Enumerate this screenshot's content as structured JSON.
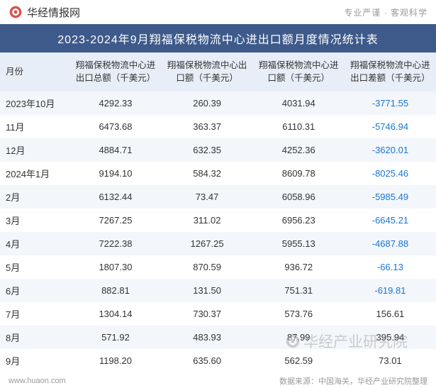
{
  "header": {
    "site_name": "华经情报网",
    "tagline": "专业严谨 · 客观科学"
  },
  "title": "2023-2024年9月翔福保税物流中心进出口额月度情况统计表",
  "columns": [
    "月份",
    "翔福保税物流中心进出口总额（千美元）",
    "翔福保税物流中心出口额（千美元）",
    "翔福保税物流中心进口额（千美元）",
    "翔福保税物流中心进出口差额（千美元）"
  ],
  "rows": [
    {
      "month": "2023年10月",
      "total": "4292.33",
      "export": "260.39",
      "import": "4031.94",
      "diff": "-3771.55"
    },
    {
      "month": "11月",
      "total": "6473.68",
      "export": "363.37",
      "import": "6110.31",
      "diff": "-5746.94"
    },
    {
      "month": "12月",
      "total": "4884.71",
      "export": "632.35",
      "import": "4252.36",
      "diff": "-3620.01"
    },
    {
      "month": "2024年1月",
      "total": "9194.10",
      "export": "584.32",
      "import": "8609.78",
      "diff": "-8025.46"
    },
    {
      "month": "2月",
      "total": "6132.44",
      "export": "73.47",
      "import": "6058.96",
      "diff": "-5985.49"
    },
    {
      "month": "3月",
      "total": "7267.25",
      "export": "311.02",
      "import": "6956.23",
      "diff": "-6645.21"
    },
    {
      "month": "4月",
      "total": "7222.38",
      "export": "1267.25",
      "import": "5955.13",
      "diff": "-4687.88"
    },
    {
      "month": "5月",
      "total": "1807.30",
      "export": "870.59",
      "import": "936.72",
      "diff": "-66.13"
    },
    {
      "month": "6月",
      "total": "882.81",
      "export": "131.50",
      "import": "751.31",
      "diff": "-619.81"
    },
    {
      "month": "7月",
      "total": "1304.14",
      "export": "730.37",
      "import": "573.76",
      "diff": "156.61"
    },
    {
      "month": "8月",
      "total": "571.92",
      "export": "483.93",
      "import": "87.99",
      "diff": "395.94"
    },
    {
      "month": "9月",
      "total": "1198.20",
      "export": "635.60",
      "import": "562.59",
      "diff": "73.01"
    }
  ],
  "footer": {
    "url": "www.huaon.com",
    "source": "数据来源：中国海关，华经产业研究院整理"
  },
  "watermark": "华经产业研究院",
  "colors": {
    "title_bg": "#3d5a8a",
    "header_row_bg": "#e8eef7",
    "row_odd_bg": "#f3f6fb",
    "row_even_bg": "#ffffff",
    "negative_color": "#1976d2",
    "text_color": "#333333",
    "muted_color": "#999999"
  }
}
